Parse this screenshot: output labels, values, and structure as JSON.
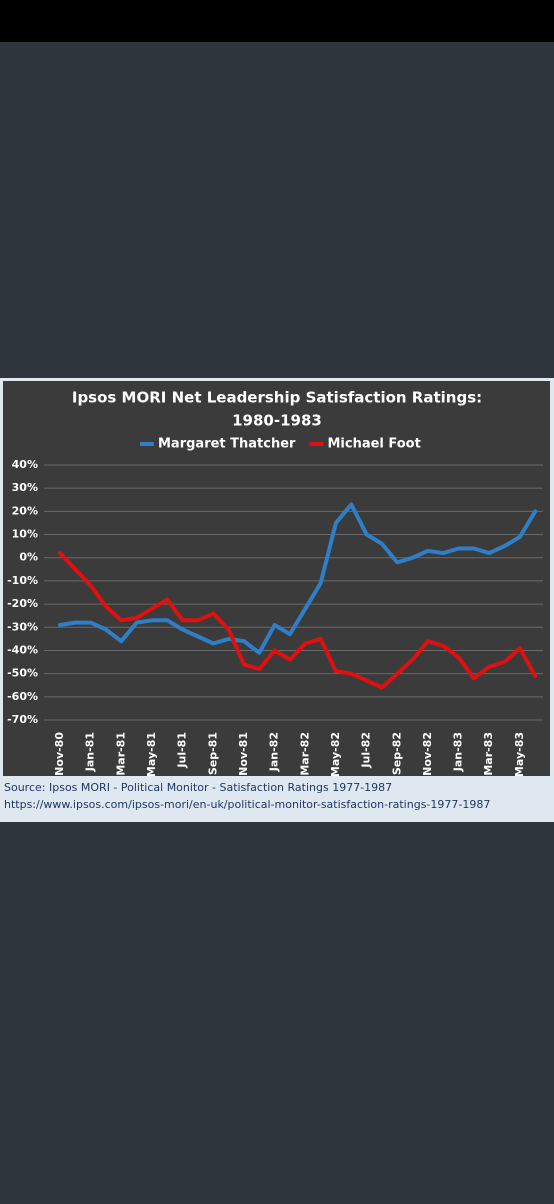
{
  "chart_data": {
    "type": "line",
    "title": [
      "Ipsos MORI Net Leadership Satisfaction Ratings:",
      "1980-1983"
    ],
    "categories": [
      "Nov-80",
      null,
      "Jan-81",
      null,
      "Mar-81",
      null,
      "May-81",
      null,
      "Jul-81",
      null,
      "Sep-81",
      null,
      "Nov-81",
      null,
      "Jan-82",
      null,
      "Mar-82",
      null,
      "May-82",
      null,
      "Jul-82",
      null,
      "Sep-82",
      null,
      "Nov-82",
      null,
      "Jan-83",
      null,
      "Mar-83",
      null,
      "May-83",
      null
    ],
    "series": [
      {
        "name": "Margaret Thatcher",
        "color": "#2f7fc8",
        "values": [
          -29,
          -28,
          -28,
          -31,
          -36,
          -28,
          -27,
          -27,
          -31,
          -34,
          -37,
          -35,
          -36,
          -41,
          -29,
          -33,
          -22,
          -11,
          15,
          23,
          10,
          6,
          -2,
          0,
          3,
          2,
          4,
          4,
          2,
          5,
          9,
          20
        ]
      },
      {
        "name": "Michael Foot",
        "color": "#e01010",
        "values": [
          2,
          -5,
          -12,
          -21,
          -27,
          -26,
          -22,
          -18,
          -27,
          -27,
          -24,
          -31,
          -46,
          -48,
          -40,
          -44,
          -37,
          -35,
          -49,
          -50,
          -53,
          -56,
          -50,
          -44,
          -36,
          -38,
          -43,
          -52,
          -47,
          -45,
          -39,
          -51
        ]
      }
    ],
    "ylim": [
      -70,
      40
    ],
    "yticks": [
      {
        "value": 40,
        "label": "40%"
      },
      {
        "value": 30,
        "label": "30%"
      },
      {
        "value": 20,
        "label": "20%"
      },
      {
        "value": 10,
        "label": "10%"
      },
      {
        "value": 0,
        "label": "0%"
      },
      {
        "value": -10,
        "label": "-10%"
      },
      {
        "value": -20,
        "label": "-20%"
      },
      {
        "value": -30,
        "label": "-30%"
      },
      {
        "value": -40,
        "label": "-40%"
      },
      {
        "value": -50,
        "label": "-50%"
      },
      {
        "value": -60,
        "label": "-60%"
      },
      {
        "value": -70,
        "label": "-70%"
      }
    ],
    "grid": true,
    "source": [
      "Source: Ipsos MORI - Political Monitor - Satisfaction Ratings 1977-1987",
      "https://www.ipsos.com/ipsos-mori/en-uk/political-monitor-satisfaction-ratings-1977-1987"
    ]
  }
}
